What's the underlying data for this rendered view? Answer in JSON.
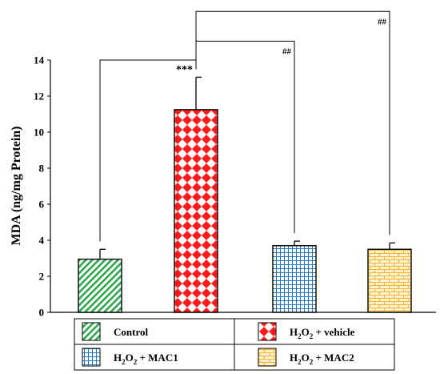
{
  "chart_data": {
    "type": "bar",
    "ylabel": "MDA (ng/mg Protein)",
    "ylim": [
      0,
      14
    ],
    "yticks": [
      "0",
      "2",
      "4",
      "6",
      "8",
      "10",
      "12",
      "14"
    ],
    "grid": false,
    "legend_position": "bottom",
    "categories": [
      {
        "id": "control",
        "legend": [
          "Control"
        ],
        "value": 2.95,
        "error": 0.55,
        "color": "#2eaa4f",
        "pattern": "diagonal-stripes"
      },
      {
        "id": "vehicle",
        "legend": [
          "H",
          "2",
          "O",
          "2",
          " + vehicle"
        ],
        "value": 11.25,
        "error": 1.8,
        "color": "#ff1a1a",
        "pattern": "diamond-checker"
      },
      {
        "id": "mac1",
        "legend": [
          "H",
          "2",
          "O",
          "2",
          " + MAC1"
        ],
        "value": 3.7,
        "error": 0.25,
        "color": "#1f78c8",
        "pattern": "grid"
      },
      {
        "id": "mac2",
        "legend": [
          "H",
          "2",
          "O",
          "2",
          " + MAC2"
        ],
        "value": 3.5,
        "error": 0.35,
        "color": "#f2b93b",
        "pattern": "brick"
      }
    ],
    "annotations": [
      {
        "label": "***",
        "from": "control",
        "to": "vehicle",
        "height": 14.0
      },
      {
        "label": "##",
        "from": "vehicle",
        "to": "mac1",
        "height": 15.05
      },
      {
        "label": "##",
        "from": "vehicle",
        "to": "mac2",
        "height": 16.7
      }
    ]
  }
}
